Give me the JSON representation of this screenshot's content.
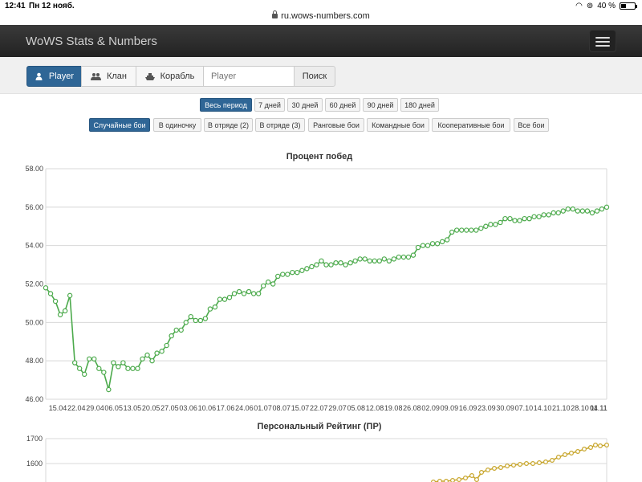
{
  "status_bar": {
    "time": "12:41",
    "date": "Пн 12 нояб.",
    "url": "ru.wows-numbers.com",
    "battery": "40 %",
    "battery_level": 0.4
  },
  "navbar": {
    "brand": "WoWS Stats & Numbers"
  },
  "search": {
    "tabs": [
      {
        "label": "Player",
        "icon": "user-icon",
        "active": true
      },
      {
        "label": "Клан",
        "icon": "users-icon",
        "active": false
      },
      {
        "label": "Корабль",
        "icon": "ship-icon",
        "active": false
      }
    ],
    "placeholder": "Player",
    "button": "Поиск"
  },
  "periods": [
    {
      "label": "Весь период",
      "active": true
    },
    {
      "label": "7 дней",
      "active": false
    },
    {
      "label": "30 дней",
      "active": false
    },
    {
      "label": "60 дней",
      "active": false
    },
    {
      "label": "90 дней",
      "active": false
    },
    {
      "label": "180 дней",
      "active": false
    }
  ],
  "battle_types": [
    {
      "label": "Случайные бои",
      "active": true
    },
    {
      "label": "В одиночку",
      "active": false
    },
    {
      "label": "В отряде (2)",
      "active": false
    },
    {
      "label": "В отряде (3)",
      "active": false
    },
    {
      "label": "Ранговые бои",
      "active": false
    },
    {
      "label": "Командные бои",
      "active": false
    },
    {
      "label": "Кооперативные бои",
      "active": false
    },
    {
      "label": "Все бои",
      "active": false
    }
  ],
  "chart_data": [
    {
      "type": "line",
      "title": "Процент побед",
      "color": "#4caa4c",
      "ylim": [
        46,
        58
      ],
      "yticks": [
        "46.00",
        "48.00",
        "50.00",
        "52.00",
        "54.00",
        "56.00",
        "58.00"
      ],
      "xticks": [
        "15.04",
        "22.04",
        "29.04",
        "06.05",
        "13.05",
        "20.05",
        "27.05",
        "03.06",
        "10.06",
        "17.06",
        "24.06",
        "01.07",
        "08.07",
        "15.07",
        "22.07",
        "29.07",
        "05.08",
        "12.08",
        "19.08",
        "26.08",
        "02.09",
        "09.09",
        "16.09",
        "23.09",
        "30.09",
        "07.10",
        "14.10",
        "21.10",
        "28.10",
        "04.11",
        "11.11"
      ],
      "grid": true,
      "values": [
        51.8,
        51.5,
        51.1,
        50.4,
        50.6,
        51.4,
        47.9,
        47.6,
        47.3,
        48.1,
        48.1,
        47.6,
        47.4,
        46.5,
        47.9,
        47.7,
        47.9,
        47.6,
        47.6,
        47.6,
        48.1,
        48.3,
        48.0,
        48.4,
        48.5,
        48.8,
        49.3,
        49.6,
        49.6,
        50.0,
        50.3,
        50.1,
        50.1,
        50.2,
        50.7,
        50.8,
        51.2,
        51.2,
        51.3,
        51.5,
        51.6,
        51.5,
        51.6,
        51.5,
        51.5,
        51.9,
        52.1,
        52.0,
        52.4,
        52.5,
        52.5,
        52.6,
        52.6,
        52.7,
        52.8,
        52.9,
        53.0,
        53.2,
        53.0,
        53.0,
        53.1,
        53.1,
        53.0,
        53.1,
        53.2,
        53.3,
        53.3,
        53.2,
        53.2,
        53.2,
        53.3,
        53.2,
        53.3,
        53.4,
        53.4,
        53.4,
        53.5,
        53.9,
        54.0,
        54.0,
        54.1,
        54.1,
        54.2,
        54.3,
        54.7,
        54.8,
        54.8,
        54.8,
        54.8,
        54.8,
        54.9,
        55.0,
        55.1,
        55.1,
        55.2,
        55.4,
        55.4,
        55.3,
        55.3,
        55.4,
        55.4,
        55.5,
        55.5,
        55.6,
        55.6,
        55.7,
        55.7,
        55.8,
        55.9,
        55.9,
        55.8,
        55.8,
        55.8,
        55.7,
        55.8,
        55.9,
        56.0
      ]
    },
    {
      "type": "line",
      "title": "Персональный Рейтинг (ПР)",
      "color": "#c8a62c",
      "yticks": [
        "1600",
        "1700"
      ],
      "grid": true
    }
  ]
}
